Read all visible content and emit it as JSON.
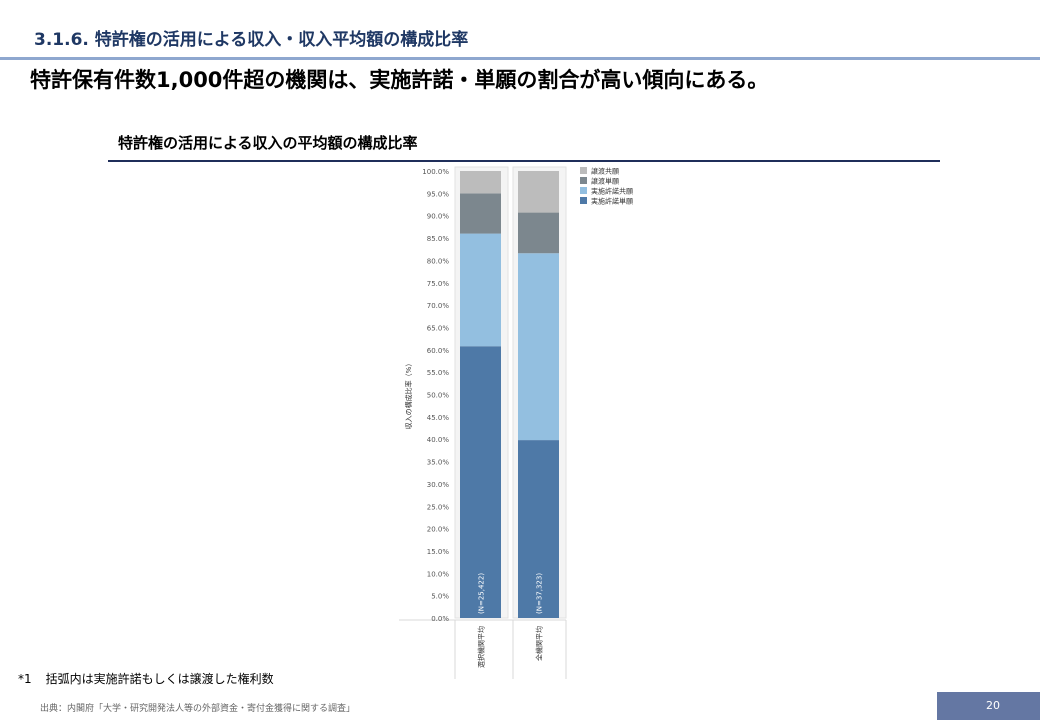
{
  "page": {
    "section_title": "3.1.6. 特許権の活用による収入・収入平均額の構成比率",
    "headline": "特許保有件数1,000件超の機関は、実施許諾・単願の割合が高い傾向にある。",
    "chart_title": "特許権の活用による収入の平均額の構成比率",
    "footnote_mark": "*1",
    "footnote_text": "括弧内は実施許諾もしくは譲渡した権利数",
    "source": "出典：内閣府「大学・研究開発法人等の外部資金・寄付金獲得に関する調査」",
    "page_number": "20"
  },
  "chart_data": {
    "type": "bar",
    "stacked": true,
    "percent_stacked": true,
    "categories": [
      "選択機関平均",
      "全機関平均"
    ],
    "bar_labels": [
      "(N=25,422)",
      "(N=37,323)"
    ],
    "series": [
      {
        "name": "実施許諾単願",
        "color": "#4e79a7",
        "values": [
          60.8,
          39.8
        ]
      },
      {
        "name": "実施許諾共願",
        "color": "#93bfe0",
        "values": [
          25.2,
          41.8
        ]
      },
      {
        "name": "譲渡単願",
        "color": "#7c878e",
        "values": [
          9.0,
          9.1
        ]
      },
      {
        "name": "譲渡共願",
        "color": "#bcbcbc",
        "values": [
          5.0,
          9.3
        ]
      }
    ],
    "legend_order": [
      "譲渡共願",
      "譲渡単願",
      "実施許諾共願",
      "実施許諾単願"
    ],
    "legend_position": "top-right",
    "ylabel": "収入の構成比率（%）",
    "ylim": [
      0,
      100
    ],
    "y_ticks": [
      "0.0%",
      "5.0%",
      "10.0%",
      "15.0%",
      "20.0%",
      "25.0%",
      "30.0%",
      "35.0%",
      "40.0%",
      "45.0%",
      "50.0%",
      "55.0%",
      "60.0%",
      "65.0%",
      "70.0%",
      "75.0%",
      "80.0%",
      "85.0%",
      "90.0%",
      "95.0%",
      "100.0%"
    ],
    "grid": false
  }
}
